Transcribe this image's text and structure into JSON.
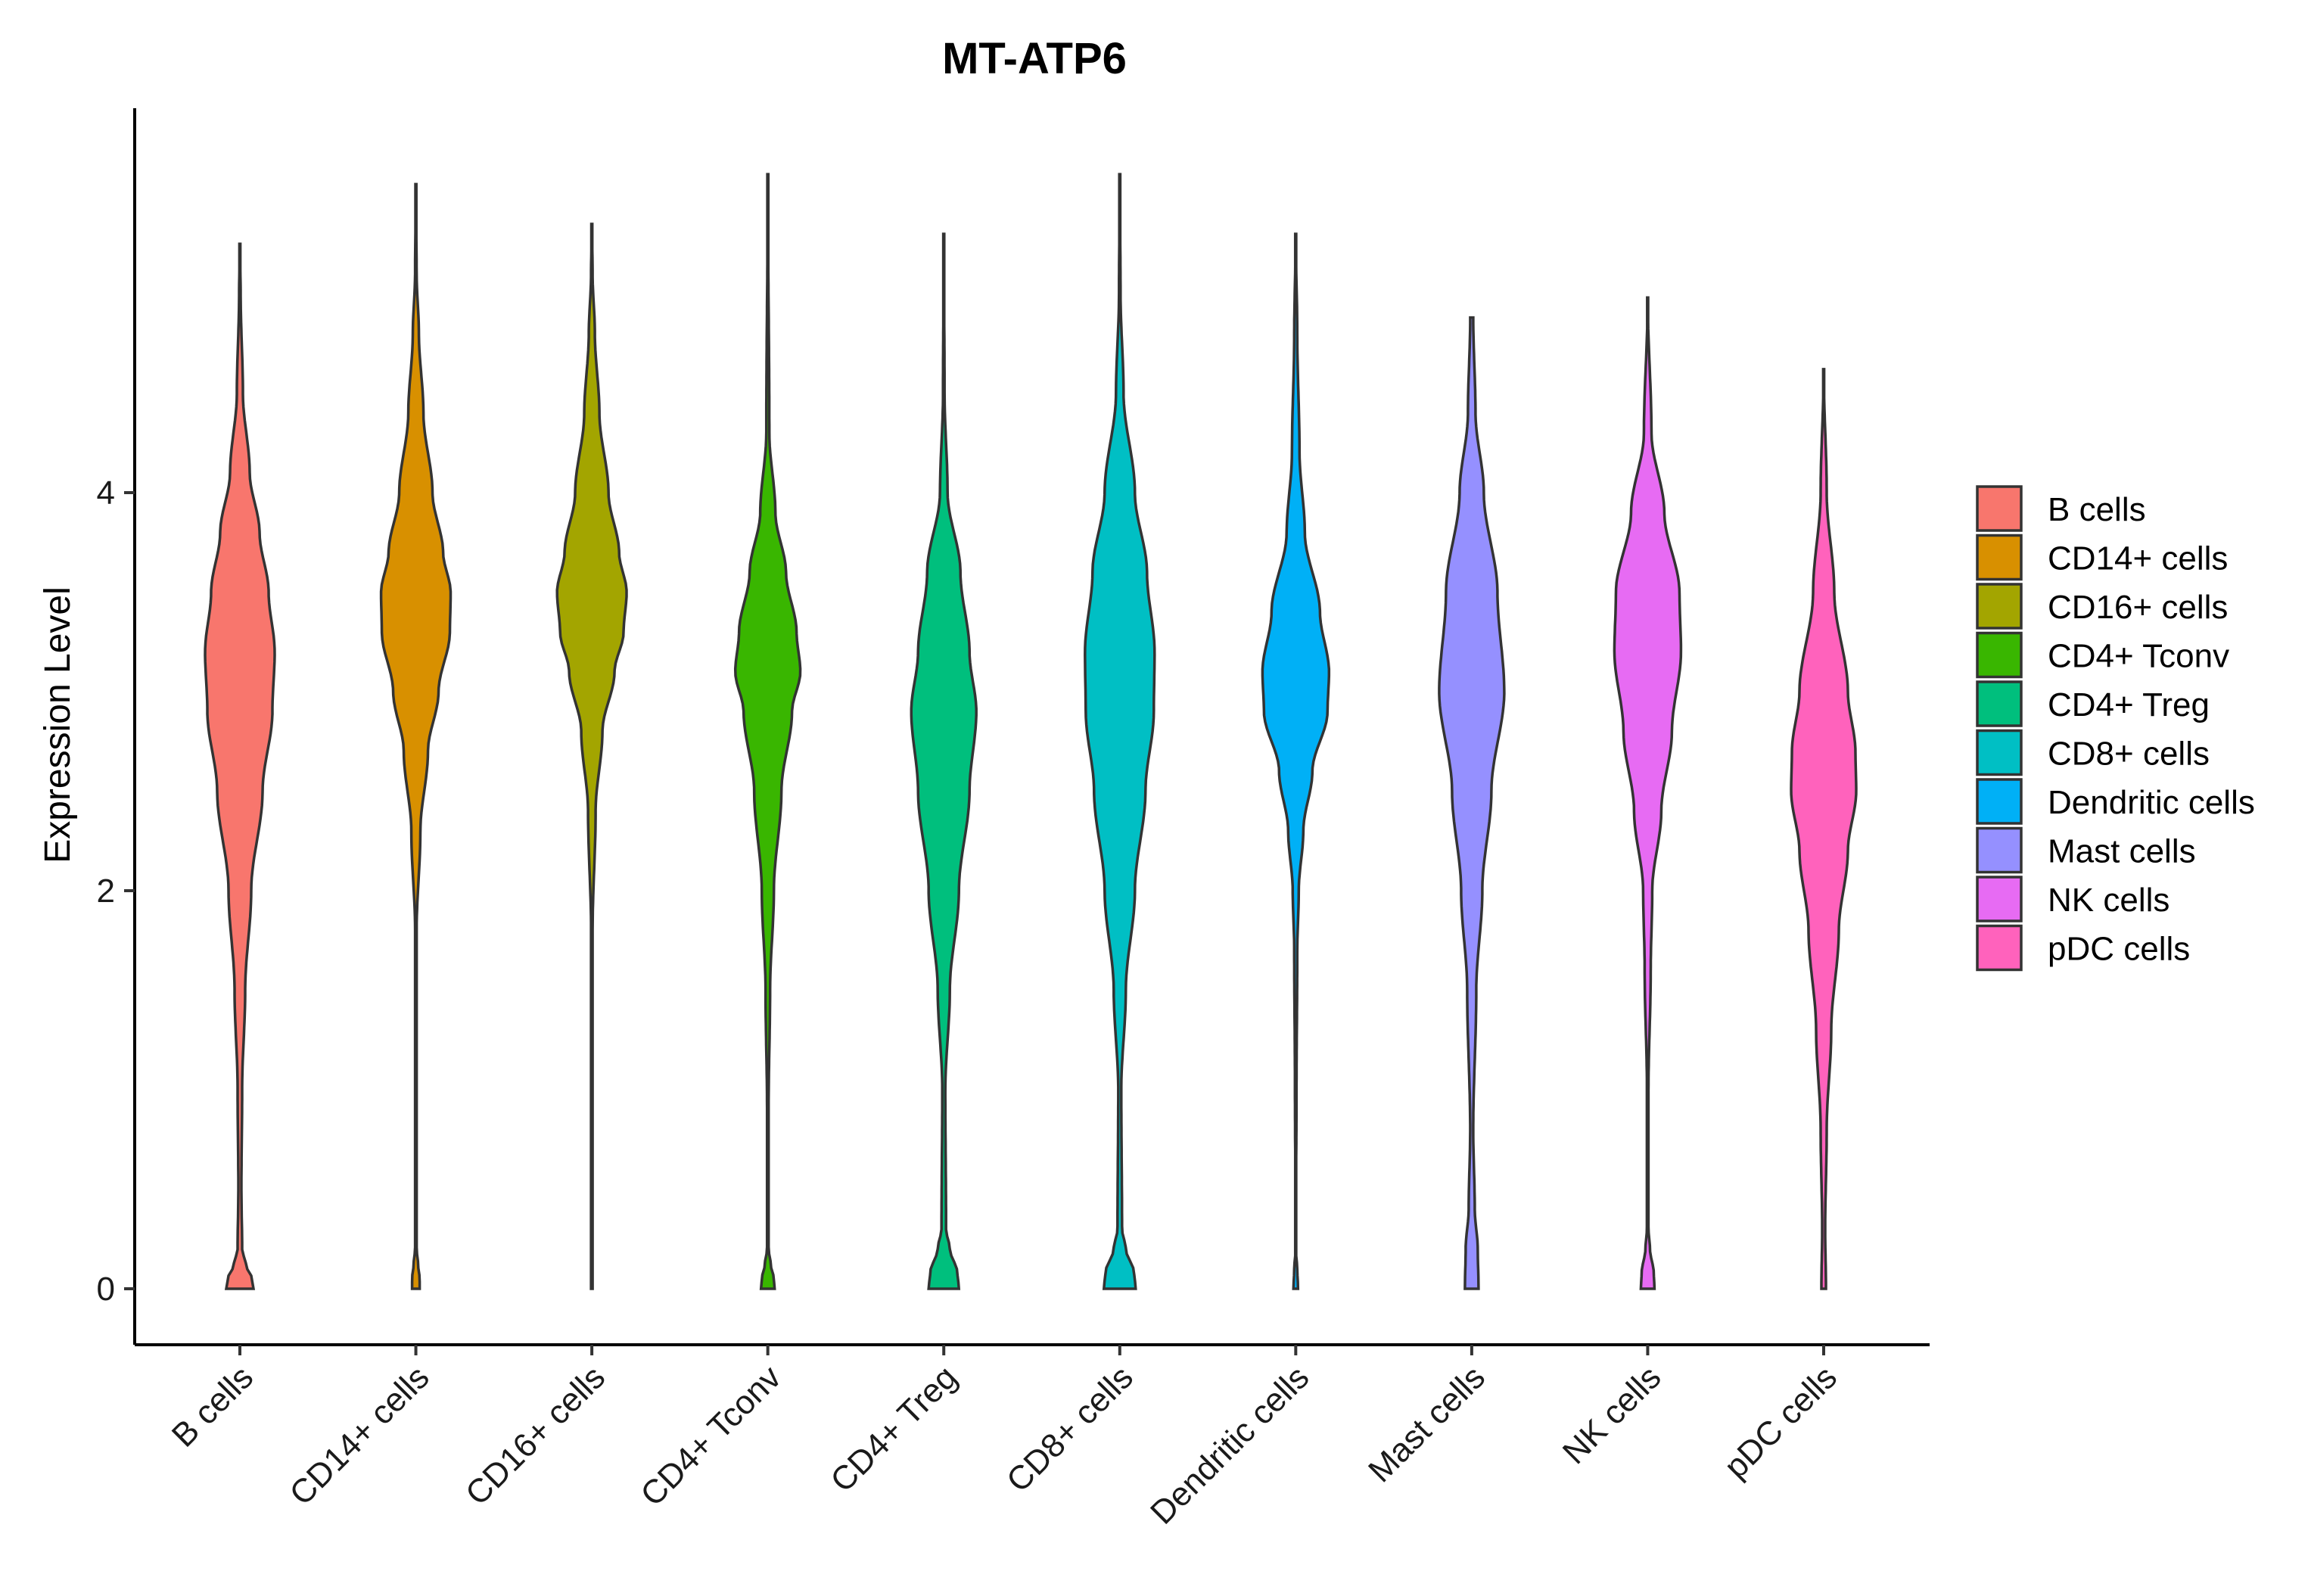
{
  "chart_data": {
    "type": "violin",
    "title": "MT-ATP6",
    "xlabel": "",
    "ylabel": "Expression Level",
    "ylim": [
      -0.28,
      5.85
    ],
    "y_ticks": [
      0,
      2,
      4
    ],
    "y_tick_labels": [
      "0",
      "2",
      "4"
    ],
    "legend_position": "right",
    "categories": [
      "B cells",
      "CD14+ cells",
      "CD16+ cells",
      "CD4+ Tconv",
      "CD4+ Treg",
      "CD8+ cells",
      "Dendritic cells",
      "Mast cells",
      "NK cells",
      "pDC cells"
    ],
    "series": [
      {
        "name": "B cells",
        "color": "#F8766D",
        "max": 5.25,
        "profile": [
          [
            0,
            0.18
          ],
          [
            0.05,
            0.16
          ],
          [
            0.12,
            0.08
          ],
          [
            0.2,
            0.03
          ],
          [
            0.5,
            0.02
          ],
          [
            1.0,
            0.03
          ],
          [
            1.5,
            0.07
          ],
          [
            2.0,
            0.15
          ],
          [
            2.5,
            0.3
          ],
          [
            2.9,
            0.43
          ],
          [
            3.2,
            0.46
          ],
          [
            3.5,
            0.38
          ],
          [
            3.8,
            0.26
          ],
          [
            4.1,
            0.13
          ],
          [
            4.5,
            0.04
          ],
          [
            5.0,
            0.01
          ],
          [
            5.25,
            0.0
          ]
        ]
      },
      {
        "name": "CD14+ cells",
        "color": "#D89000",
        "max": 5.55,
        "profile": [
          [
            0,
            0.05
          ],
          [
            0.05,
            0.05
          ],
          [
            0.12,
            0.03
          ],
          [
            0.2,
            0.01
          ],
          [
            1.0,
            0.01
          ],
          [
            1.8,
            0.01
          ],
          [
            2.3,
            0.06
          ],
          [
            2.7,
            0.16
          ],
          [
            3.0,
            0.3
          ],
          [
            3.3,
            0.45
          ],
          [
            3.5,
            0.46
          ],
          [
            3.7,
            0.36
          ],
          [
            4.0,
            0.22
          ],
          [
            4.4,
            0.1
          ],
          [
            4.8,
            0.04
          ],
          [
            5.1,
            0.01
          ],
          [
            5.55,
            0.0
          ]
        ]
      },
      {
        "name": "CD16+ cells",
        "color": "#A3A500",
        "max": 5.35,
        "profile": [
          [
            0,
            0.01
          ],
          [
            0.1,
            0.01
          ],
          [
            1.8,
            0.01
          ],
          [
            2.4,
            0.05
          ],
          [
            2.8,
            0.14
          ],
          [
            3.1,
            0.3
          ],
          [
            3.3,
            0.42
          ],
          [
            3.5,
            0.46
          ],
          [
            3.7,
            0.36
          ],
          [
            4.0,
            0.22
          ],
          [
            4.4,
            0.1
          ],
          [
            4.8,
            0.04
          ],
          [
            5.1,
            0.01
          ],
          [
            5.35,
            0.0
          ]
        ]
      },
      {
        "name": "CD4+ Tconv",
        "color": "#39B600",
        "max": 5.6,
        "profile": [
          [
            0,
            0.09
          ],
          [
            0.05,
            0.08
          ],
          [
            0.12,
            0.04
          ],
          [
            0.2,
            0.01
          ],
          [
            0.9,
            0.01
          ],
          [
            1.5,
            0.03
          ],
          [
            2.0,
            0.08
          ],
          [
            2.5,
            0.18
          ],
          [
            2.9,
            0.32
          ],
          [
            3.1,
            0.43
          ],
          [
            3.3,
            0.38
          ],
          [
            3.6,
            0.24
          ],
          [
            3.9,
            0.1
          ],
          [
            4.3,
            0.02
          ],
          [
            5.6,
            0.0
          ]
        ]
      },
      {
        "name": "CD4+ Treg",
        "color": "#00BF7D",
        "max": 5.3,
        "profile": [
          [
            0,
            0.2
          ],
          [
            0.08,
            0.18
          ],
          [
            0.2,
            0.08
          ],
          [
            0.3,
            0.03
          ],
          [
            1.0,
            0.02
          ],
          [
            1.5,
            0.08
          ],
          [
            2.0,
            0.2
          ],
          [
            2.5,
            0.34
          ],
          [
            2.9,
            0.43
          ],
          [
            3.2,
            0.34
          ],
          [
            3.6,
            0.22
          ],
          [
            4.0,
            0.05
          ],
          [
            4.5,
            0.01
          ],
          [
            5.3,
            0.0
          ]
        ]
      },
      {
        "name": "CD8+ cells",
        "color": "#00BFC4",
        "max": 5.6,
        "profile": [
          [
            0,
            0.21
          ],
          [
            0.08,
            0.19
          ],
          [
            0.2,
            0.08
          ],
          [
            0.3,
            0.03
          ],
          [
            1.0,
            0.02
          ],
          [
            1.5,
            0.08
          ],
          [
            2.0,
            0.2
          ],
          [
            2.5,
            0.34
          ],
          [
            2.9,
            0.45
          ],
          [
            3.2,
            0.46
          ],
          [
            3.6,
            0.36
          ],
          [
            4.0,
            0.2
          ],
          [
            4.5,
            0.05
          ],
          [
            5.0,
            0.01
          ],
          [
            5.6,
            0.0
          ]
        ]
      },
      {
        "name": "Dendritic cells",
        "color": "#00B0F6",
        "max": 5.3,
        "profile": [
          [
            0,
            0.03
          ],
          [
            0.1,
            0.02
          ],
          [
            0.2,
            0.0
          ],
          [
            1.0,
            0.01
          ],
          [
            1.7,
            0.02
          ],
          [
            2.0,
            0.04
          ],
          [
            2.3,
            0.1
          ],
          [
            2.6,
            0.22
          ],
          [
            2.9,
            0.42
          ],
          [
            3.1,
            0.44
          ],
          [
            3.4,
            0.32
          ],
          [
            3.8,
            0.12
          ],
          [
            4.2,
            0.05
          ],
          [
            4.8,
            0.02
          ],
          [
            5.3,
            0.0
          ]
        ]
      },
      {
        "name": "Mast cells",
        "color": "#9590FF",
        "max": 4.88,
        "profile": [
          [
            0,
            0.09
          ],
          [
            0.2,
            0.08
          ],
          [
            0.4,
            0.04
          ],
          [
            0.8,
            0.02
          ],
          [
            1.5,
            0.06
          ],
          [
            2.0,
            0.14
          ],
          [
            2.5,
            0.26
          ],
          [
            3.0,
            0.43
          ],
          [
            3.5,
            0.34
          ],
          [
            4.0,
            0.16
          ],
          [
            4.4,
            0.05
          ],
          [
            4.88,
            0.02
          ]
        ]
      },
      {
        "name": "NK cells",
        "color": "#E76BF3",
        "max": 4.98,
        "profile": [
          [
            0,
            0.09
          ],
          [
            0.08,
            0.08
          ],
          [
            0.2,
            0.03
          ],
          [
            0.3,
            0.01
          ],
          [
            1.0,
            0.01
          ],
          [
            1.6,
            0.04
          ],
          [
            2.0,
            0.06
          ],
          [
            2.4,
            0.18
          ],
          [
            2.8,
            0.32
          ],
          [
            3.2,
            0.44
          ],
          [
            3.5,
            0.42
          ],
          [
            3.9,
            0.22
          ],
          [
            4.3,
            0.05
          ],
          [
            4.98,
            0.0
          ]
        ]
      },
      {
        "name": "pDC cells",
        "color": "#FF62BC",
        "max": 4.62,
        "profile": [
          [
            0,
            0.03
          ],
          [
            0.3,
            0.02
          ],
          [
            0.8,
            0.04
          ],
          [
            1.3,
            0.1
          ],
          [
            1.8,
            0.2
          ],
          [
            2.2,
            0.32
          ],
          [
            2.5,
            0.43
          ],
          [
            2.7,
            0.42
          ],
          [
            3.0,
            0.32
          ],
          [
            3.5,
            0.14
          ],
          [
            4.0,
            0.04
          ],
          [
            4.62,
            0.0
          ]
        ]
      }
    ]
  }
}
